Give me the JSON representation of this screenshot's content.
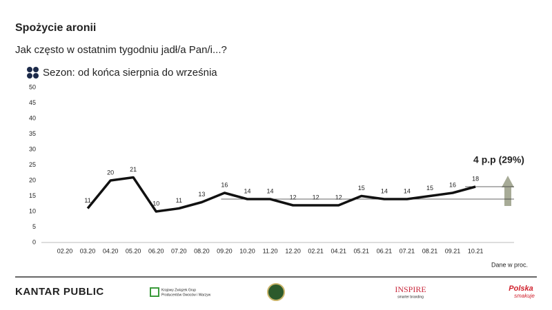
{
  "chart_data": {
    "type": "line",
    "title": "Spożycie aronii",
    "subtitle": "Jak często w ostatnim tygodniu jadł/a Pan/i...?",
    "series": [
      {
        "name": "Sezon: od końca sierpnia do września",
        "color": "#111111",
        "values": [
          null,
          11,
          20,
          21,
          10,
          11,
          13,
          16,
          14,
          14,
          12,
          12,
          12,
          15,
          14,
          14,
          15,
          16,
          18
        ]
      }
    ],
    "categories": [
      "02.20",
      "03.20",
      "04.20",
      "05.20",
      "06.20",
      "07.20",
      "08.20",
      "09.20",
      "10.20",
      "11.20",
      "12.20",
      "02.21",
      "04.21",
      "05.21",
      "06.21",
      "07.21",
      "08.21",
      "09.21",
      "10.21"
    ],
    "ylim": [
      0,
      50
    ],
    "yticks": [
      0,
      5,
      10,
      15,
      20,
      25,
      30,
      35,
      40,
      45,
      50
    ],
    "grid": false,
    "reference_values": [
      14,
      18
    ],
    "annotation": "4 p.p (29%)",
    "note": "Dane w proc."
  },
  "footer": {
    "kantar": "KANTAR PUBLIC",
    "kzgpow": [
      "Krajowy Związek Grup",
      "Producentów Owoców i Warzyw"
    ],
    "inspire": "INSPIRE",
    "inspire_tagline": "smarter branding",
    "polska": "Polska",
    "polska_tagline": "smakuje"
  }
}
